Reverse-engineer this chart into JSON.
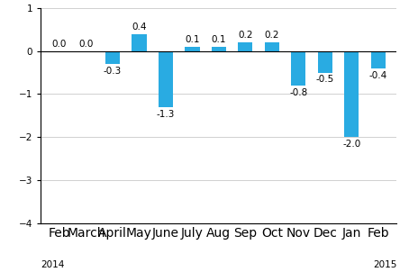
{
  "categories": [
    "Feb",
    "March",
    "April",
    "May",
    "June",
    "July",
    "Aug",
    "Sep",
    "Oct",
    "Nov",
    "Dec",
    "Jan",
    "Feb"
  ],
  "values": [
    0.0,
    0.0,
    -0.3,
    0.4,
    -1.3,
    0.1,
    0.1,
    0.2,
    0.2,
    -0.8,
    -0.5,
    -2.0,
    -0.4
  ],
  "bar_color": "#29abe2",
  "ylim": [
    -4,
    1
  ],
  "yticks": [
    -4,
    -3,
    -2,
    -1,
    0,
    1
  ],
  "label_fontsize": 7.5,
  "tick_fontsize": 7.5,
  "year_fontsize": 7.5,
  "background_color": "#ffffff",
  "grid_color": "#d0d0d0",
  "bar_width": 0.55
}
